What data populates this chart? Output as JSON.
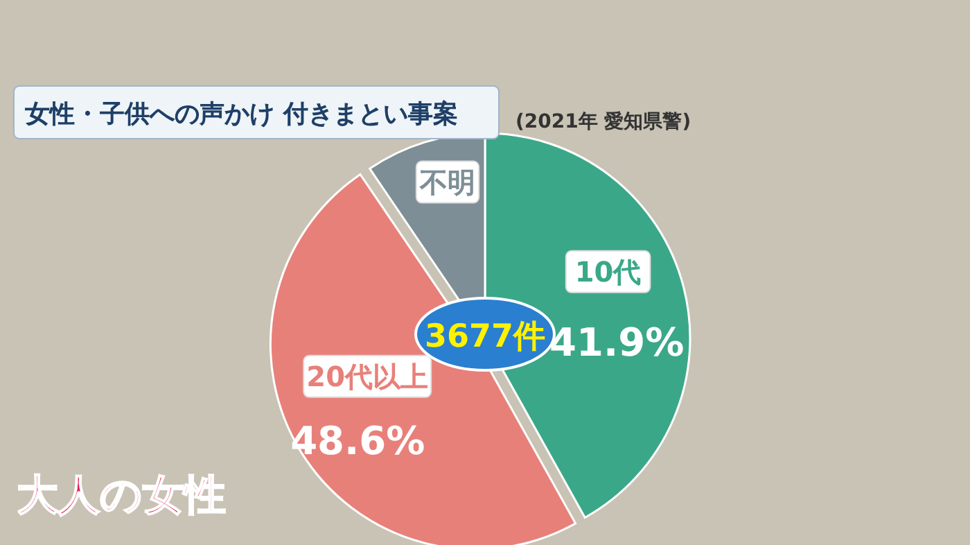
{
  "chart_data": {
    "type": "pie",
    "title": "女性・子供への声かけ 付きまとい事案",
    "subtitle": "(2021年 愛知県警)",
    "categories": [
      "10代",
      "20代以上",
      "不明"
    ],
    "values": [
      41.9,
      48.6,
      9.5
    ],
    "colors": [
      "#3aa888",
      "#e8807a",
      "#7d8e96"
    ],
    "value_labels": [
      "41.9%",
      "48.6%",
      null
    ],
    "annotations": [
      "3677件",
      "大人の女性"
    ]
  }
}
